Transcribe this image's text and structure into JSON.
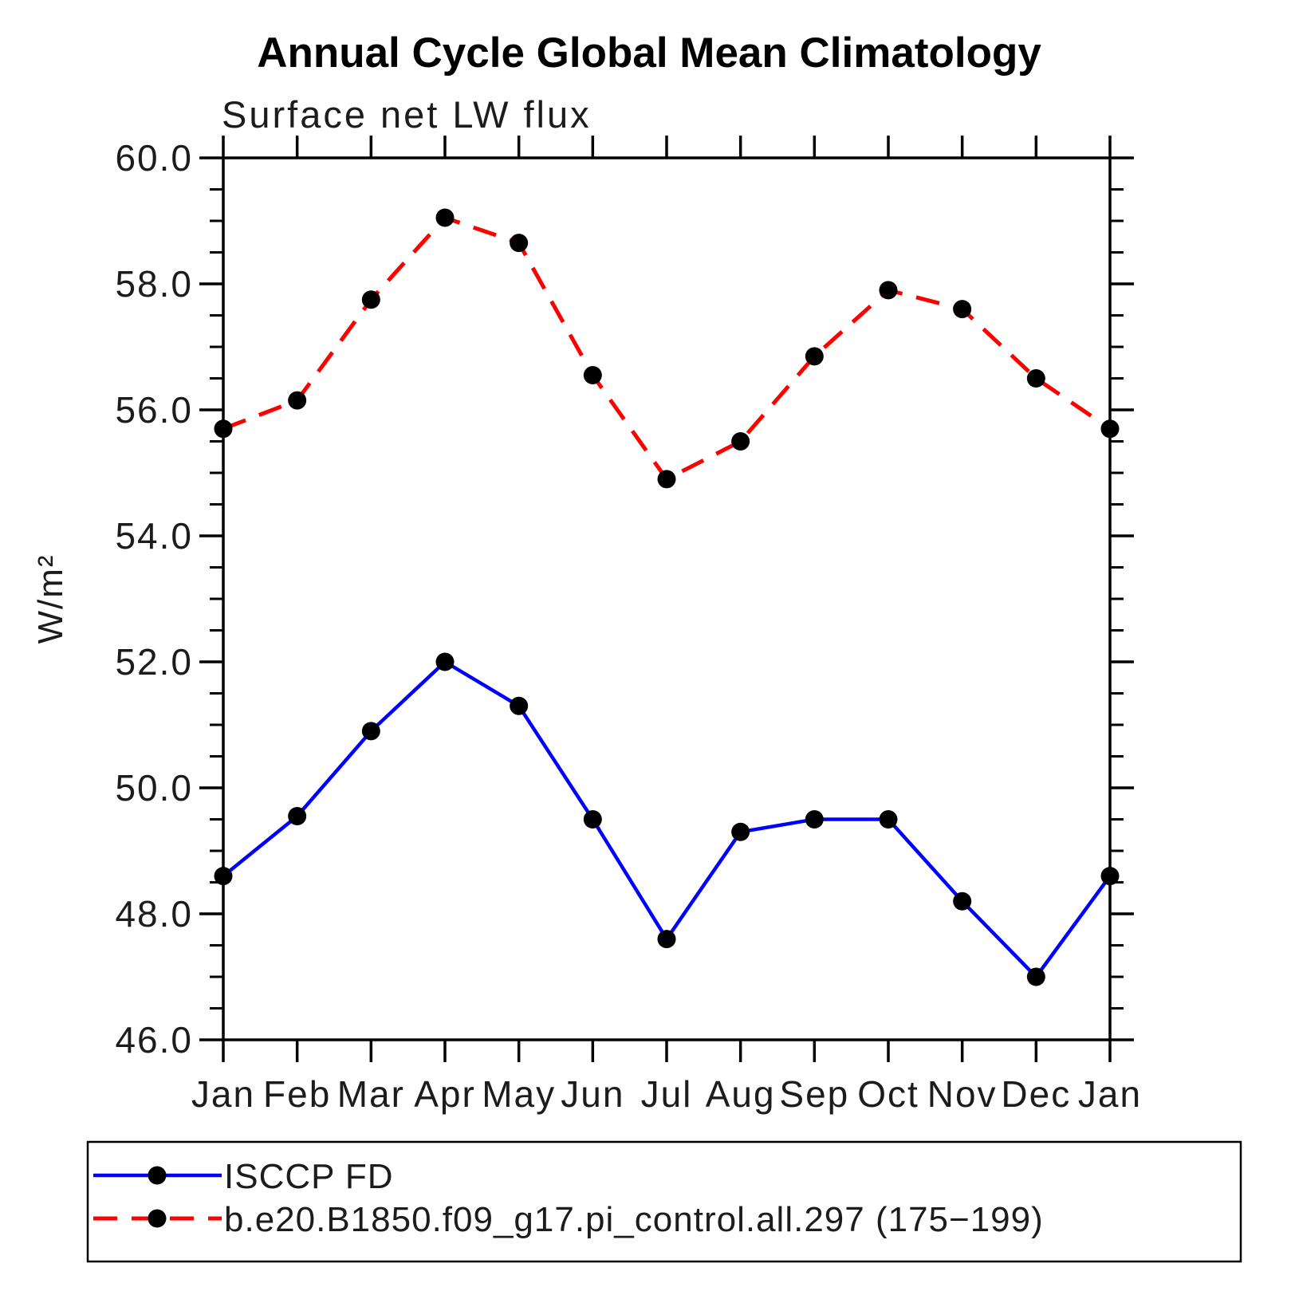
{
  "title": "Annual Cycle Global Mean Climatology",
  "subtitle": "Surface net LW flux",
  "chart_data": {
    "type": "line",
    "x_categories": [
      "Jan",
      "Feb",
      "Mar",
      "Apr",
      "May",
      "Jun",
      "Jul",
      "Aug",
      "Sep",
      "Oct",
      "Nov",
      "Dec",
      "Jan"
    ],
    "xlabel": "",
    "ylabel": "W/m²",
    "ylim": [
      46.0,
      60.0
    ],
    "ytick_major_interval": 2.0,
    "ytick_minor_interval": 0.5,
    "ytick_labels": [
      "60.0",
      "58.0",
      "56.0",
      "54.0",
      "52.0",
      "50.0",
      "48.0",
      "46.0"
    ],
    "grid": false,
    "legend_position": "bottom",
    "frame_color": "#000000",
    "marker_color": "#000000",
    "series": [
      {
        "name": "ISCCP FD",
        "color": "#0000ff",
        "style": "solid",
        "marker": "circle",
        "values": [
          48.6,
          49.55,
          50.9,
          52.0,
          51.3,
          49.5,
          47.6,
          49.3,
          49.5,
          49.5,
          48.2,
          47.0,
          48.6
        ]
      },
      {
        "name": "b.e20.B1850.f09_g17.pi_control.all.297 (175−199)",
        "color": "#ff0000",
        "style": "dashed",
        "marker": "circle",
        "values": [
          55.7,
          56.15,
          57.75,
          59.05,
          58.65,
          56.55,
          54.9,
          55.5,
          56.85,
          57.9,
          57.6,
          56.5,
          55.7
        ]
      }
    ]
  }
}
